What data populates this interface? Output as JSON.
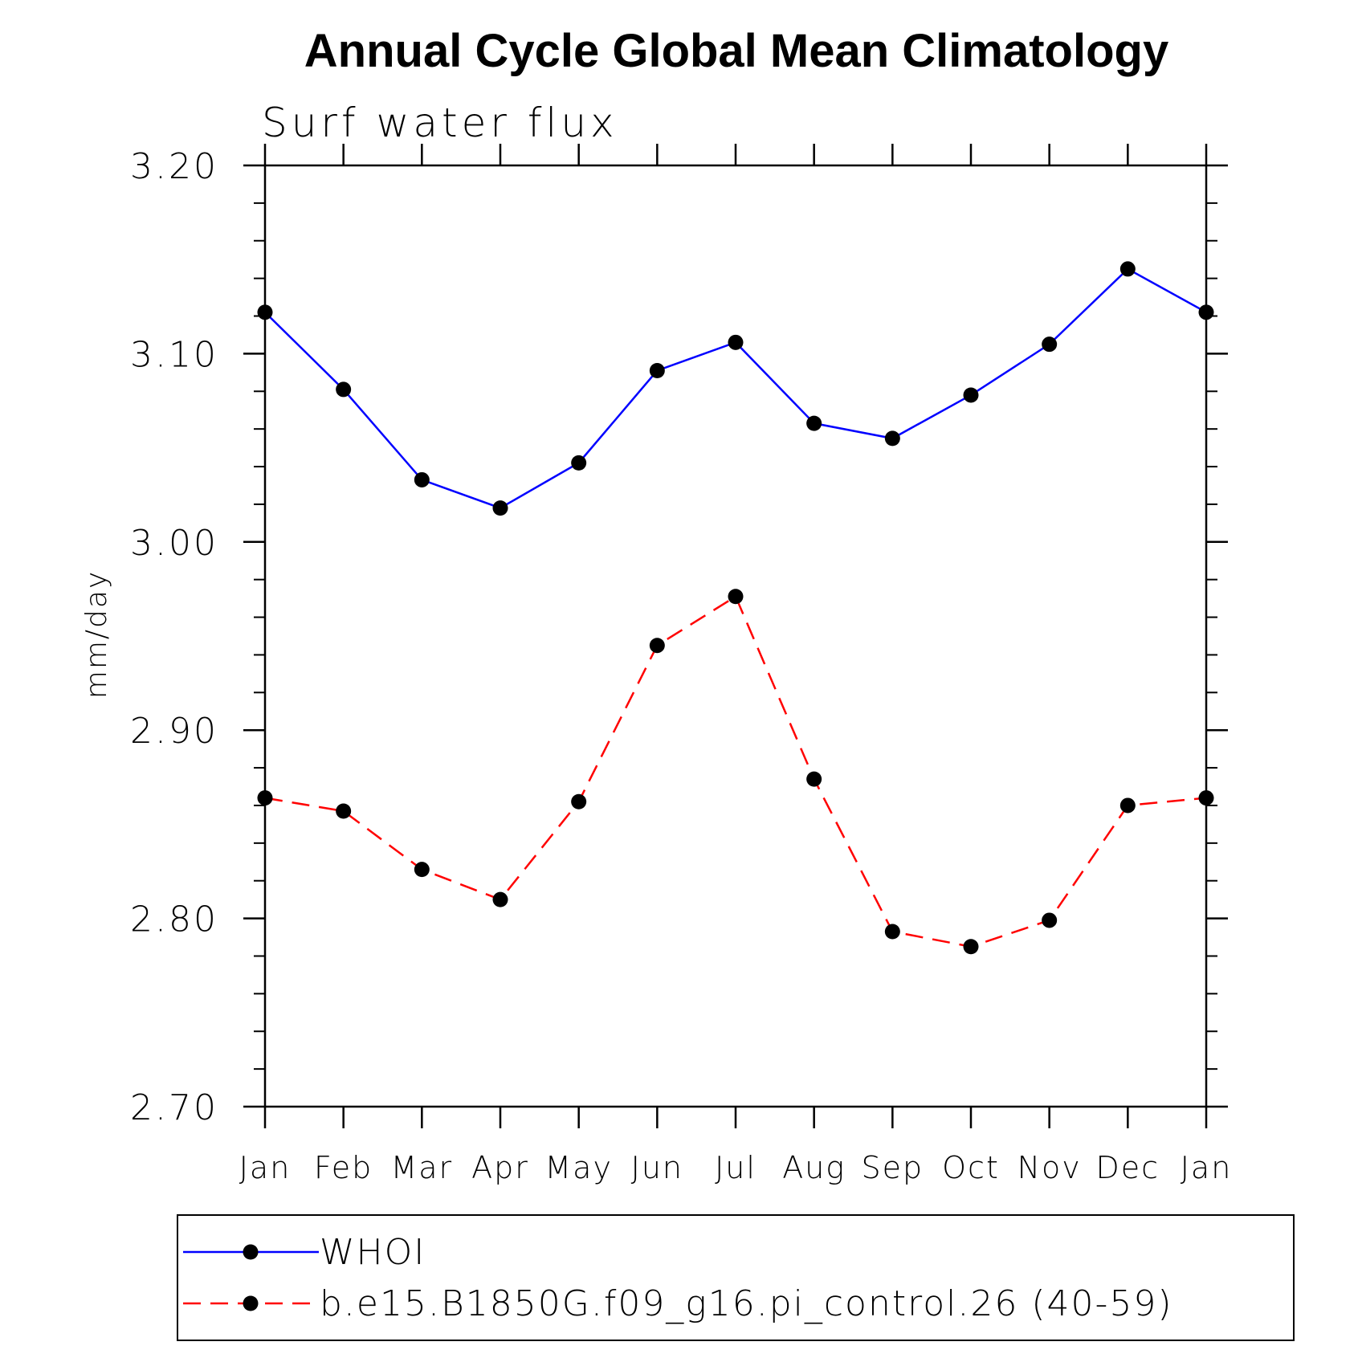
{
  "chart_data": {
    "type": "line",
    "title": "Annual Cycle Global Mean Climatology",
    "subtitle": "Surf water flux",
    "xlabel": "",
    "ylabel": "mm/day",
    "ylim": [
      2.7,
      3.2
    ],
    "yticks": [
      "3.20",
      "3.10",
      "3.00",
      "2.90",
      "2.80",
      "2.70"
    ],
    "yticks_values": [
      3.2,
      3.1,
      3.0,
      2.9,
      2.8,
      2.7
    ],
    "categories": [
      "Jan",
      "Feb",
      "Mar",
      "Apr",
      "May",
      "Jun",
      "Jul",
      "Aug",
      "Sep",
      "Oct",
      "Nov",
      "Dec",
      "Jan"
    ],
    "grid": false,
    "legend_position": "bottom",
    "series": [
      {
        "name": "WHOI",
        "color": "#0000ff",
        "dash": "solid",
        "marker": "filled-circle",
        "values": [
          3.122,
          3.081,
          3.033,
          3.018,
          3.042,
          3.091,
          3.106,
          3.063,
          3.055,
          3.078,
          3.105,
          3.145,
          3.122
        ]
      },
      {
        "name": "b.e15.B1850G.f09_g16.pi_control.26 (40-59)",
        "color": "#ff0000",
        "dash": "dashed",
        "marker": "filled-circle",
        "values": [
          2.864,
          2.857,
          2.826,
          2.81,
          2.862,
          2.945,
          2.971,
          2.874,
          2.793,
          2.785,
          2.799,
          2.86,
          2.864
        ]
      }
    ]
  }
}
